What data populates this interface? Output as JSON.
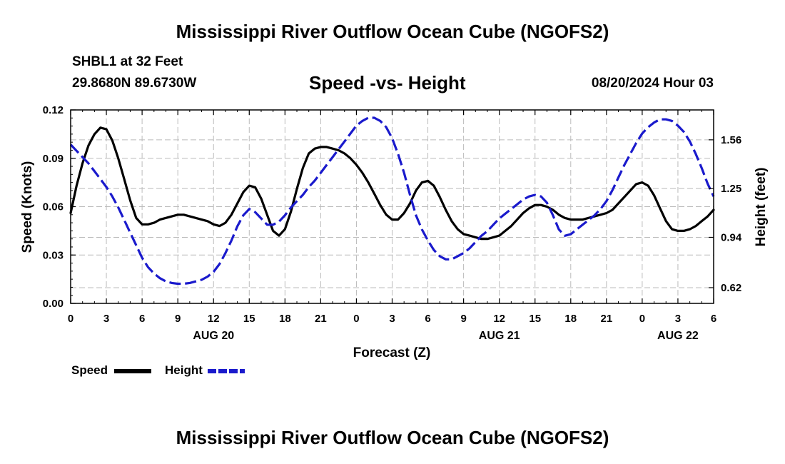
{
  "header": {
    "title": "Mississippi River Outflow Ocean Cube (NGOFS2)",
    "station": "SHBL1 at 32 Feet",
    "coords": "29.8680N  89.6730W",
    "chart_title": "Speed -vs- Height",
    "date": "08/20/2024 Hour 03"
  },
  "footer": {
    "title": "Mississippi River Outflow Ocean Cube (NGOFS2)"
  },
  "legend": {
    "speed_label": "Speed",
    "height_label": "Height"
  },
  "colors": {
    "speed": "#000000",
    "height": "#1a1acc",
    "grid": "#bbbbbb"
  },
  "chart_data": {
    "type": "line",
    "title": "Speed -vs- Height",
    "xlabel": "Forecast (Z)",
    "ylabel_left": "Speed (Knots)",
    "ylabel_right": "Height (feet)",
    "x_unit": "hours since 2024-08-20 00Z",
    "xlim": [
      0,
      54
    ],
    "ylim_left": [
      0,
      0.12
    ],
    "ylim_right": [
      0.52,
      1.75
    ],
    "x_ticks": [
      0,
      3,
      6,
      9,
      12,
      15,
      18,
      21,
      24,
      27,
      30,
      33,
      36,
      39,
      42,
      45,
      48,
      51,
      54
    ],
    "x_tick_labels": [
      "0",
      "3",
      "6",
      "9",
      "12",
      "15",
      "18",
      "21",
      "0",
      "3",
      "6",
      "9",
      "12",
      "15",
      "18",
      "21",
      "0",
      "3",
      "6"
    ],
    "date_labels": [
      {
        "x": 12,
        "label": "AUG 20"
      },
      {
        "x": 36,
        "label": "AUG 21"
      },
      {
        "x": 51,
        "label": "AUG 22"
      }
    ],
    "y_ticks_left": [
      0,
      0.03,
      0.06,
      0.09,
      0.12
    ],
    "y_tick_labels_left": [
      "0.00",
      "0.03",
      "0.06",
      "0.09",
      "0.12"
    ],
    "y_ticks_right": [
      0.62,
      0.94,
      1.25,
      1.56
    ],
    "y_tick_labels_right": [
      "0.62",
      "0.94",
      "1.25",
      "1.56"
    ],
    "grid": true,
    "series": [
      {
        "name": "Speed",
        "axis": "left",
        "style": "solid",
        "x": [
          0,
          0.5,
          1,
          1.5,
          2,
          2.5,
          3,
          3.5,
          4,
          4.5,
          5,
          5.5,
          6,
          6.5,
          7,
          7.5,
          8,
          8.5,
          9,
          9.5,
          10,
          10.5,
          11,
          11.5,
          12,
          12.5,
          13,
          13.5,
          14,
          14.5,
          15,
          15.5,
          16,
          16.5,
          17,
          17.5,
          18,
          18.5,
          19,
          19.5,
          20,
          20.5,
          21,
          21.5,
          22,
          22.5,
          23,
          23.5,
          24,
          24.5,
          25,
          25.5,
          26,
          26.5,
          27,
          27.5,
          28,
          28.5,
          29,
          29.5,
          30,
          30.5,
          31,
          31.5,
          32,
          32.5,
          33,
          33.5,
          34,
          34.5,
          35,
          35.5,
          36,
          36.5,
          37,
          37.5,
          38,
          38.5,
          39,
          39.5,
          40,
          40.5,
          41,
          41.5,
          42,
          42.5,
          43,
          43.5,
          44,
          44.5,
          45,
          45.5,
          46,
          46.5,
          47,
          47.5,
          48,
          48.5,
          49,
          49.5,
          50,
          50.5,
          51,
          51.5,
          52,
          52.5,
          53,
          53.5,
          54
        ],
        "values": [
          0.056,
          0.073,
          0.087,
          0.098,
          0.105,
          0.109,
          0.108,
          0.101,
          0.09,
          0.077,
          0.064,
          0.053,
          0.049,
          0.049,
          0.05,
          0.052,
          0.053,
          0.054,
          0.055,
          0.055,
          0.054,
          0.053,
          0.052,
          0.051,
          0.049,
          0.048,
          0.05,
          0.055,
          0.062,
          0.069,
          0.073,
          0.072,
          0.065,
          0.055,
          0.045,
          0.042,
          0.046,
          0.057,
          0.071,
          0.084,
          0.093,
          0.096,
          0.097,
          0.097,
          0.096,
          0.095,
          0.093,
          0.09,
          0.086,
          0.081,
          0.075,
          0.068,
          0.061,
          0.055,
          0.052,
          0.052,
          0.056,
          0.062,
          0.07,
          0.075,
          0.076,
          0.073,
          0.066,
          0.058,
          0.051,
          0.046,
          0.043,
          0.042,
          0.041,
          0.04,
          0.04,
          0.041,
          0.042,
          0.045,
          0.048,
          0.052,
          0.056,
          0.059,
          0.061,
          0.061,
          0.06,
          0.058,
          0.055,
          0.053,
          0.052,
          0.052,
          0.052,
          0.053,
          0.054,
          0.055,
          0.056,
          0.058,
          0.062,
          0.066,
          0.07,
          0.074,
          0.075,
          0.073,
          0.067,
          0.059,
          0.051,
          0.046,
          0.045,
          0.045,
          0.046,
          0.048,
          0.051,
          0.054,
          0.058
        ]
      },
      {
        "name": "Height",
        "axis": "right",
        "style": "dashed",
        "x": [
          0,
          0.5,
          1,
          1.5,
          2,
          2.5,
          3,
          3.5,
          4,
          4.5,
          5,
          5.5,
          6,
          6.5,
          7,
          7.5,
          8,
          8.5,
          9,
          9.5,
          10,
          10.5,
          11,
          11.5,
          12,
          12.5,
          13,
          13.5,
          14,
          14.5,
          15,
          15.5,
          16,
          16.5,
          17,
          17.5,
          18,
          18.5,
          19,
          19.5,
          20,
          20.5,
          21,
          21.5,
          22,
          22.5,
          23,
          23.5,
          24,
          24.5,
          25,
          25.5,
          26,
          26.5,
          27,
          27.5,
          28,
          28.5,
          29,
          29.5,
          30,
          30.5,
          31,
          31.5,
          32,
          32.5,
          33,
          33.5,
          34,
          34.5,
          35,
          35.5,
          36,
          36.5,
          37,
          37.5,
          38,
          38.5,
          39,
          39.5,
          40,
          40.5,
          41,
          41.5,
          42,
          42.5,
          43,
          43.5,
          44,
          44.5,
          45,
          45.5,
          46,
          46.5,
          47,
          47.5,
          48,
          48.5,
          49,
          49.5,
          50,
          50.5,
          51,
          51.5,
          52,
          52.5,
          53,
          53.5,
          54
        ],
        "values": [
          1.53,
          1.49,
          1.45,
          1.41,
          1.36,
          1.31,
          1.26,
          1.2,
          1.13,
          1.05,
          0.97,
          0.89,
          0.81,
          0.75,
          0.71,
          0.68,
          0.66,
          0.65,
          0.645,
          0.645,
          0.65,
          0.66,
          0.67,
          0.69,
          0.72,
          0.77,
          0.84,
          0.92,
          1.01,
          1.08,
          1.12,
          1.1,
          1.06,
          1.02,
          1.02,
          1.04,
          1.08,
          1.13,
          1.17,
          1.21,
          1.26,
          1.3,
          1.35,
          1.4,
          1.45,
          1.5,
          1.55,
          1.6,
          1.65,
          1.68,
          1.7,
          1.7,
          1.68,
          1.64,
          1.57,
          1.47,
          1.35,
          1.21,
          1.08,
          0.99,
          0.92,
          0.86,
          0.82,
          0.8,
          0.8,
          0.82,
          0.84,
          0.87,
          0.91,
          0.95,
          0.98,
          1.02,
          1.06,
          1.09,
          1.12,
          1.15,
          1.18,
          1.2,
          1.21,
          1.2,
          1.16,
          1.08,
          0.99,
          0.95,
          0.96,
          0.99,
          1.02,
          1.05,
          1.08,
          1.12,
          1.17,
          1.24,
          1.32,
          1.4,
          1.47,
          1.54,
          1.6,
          1.64,
          1.67,
          1.69,
          1.69,
          1.68,
          1.65,
          1.61,
          1.55,
          1.47,
          1.38,
          1.28,
          1.2
        ]
      }
    ]
  }
}
